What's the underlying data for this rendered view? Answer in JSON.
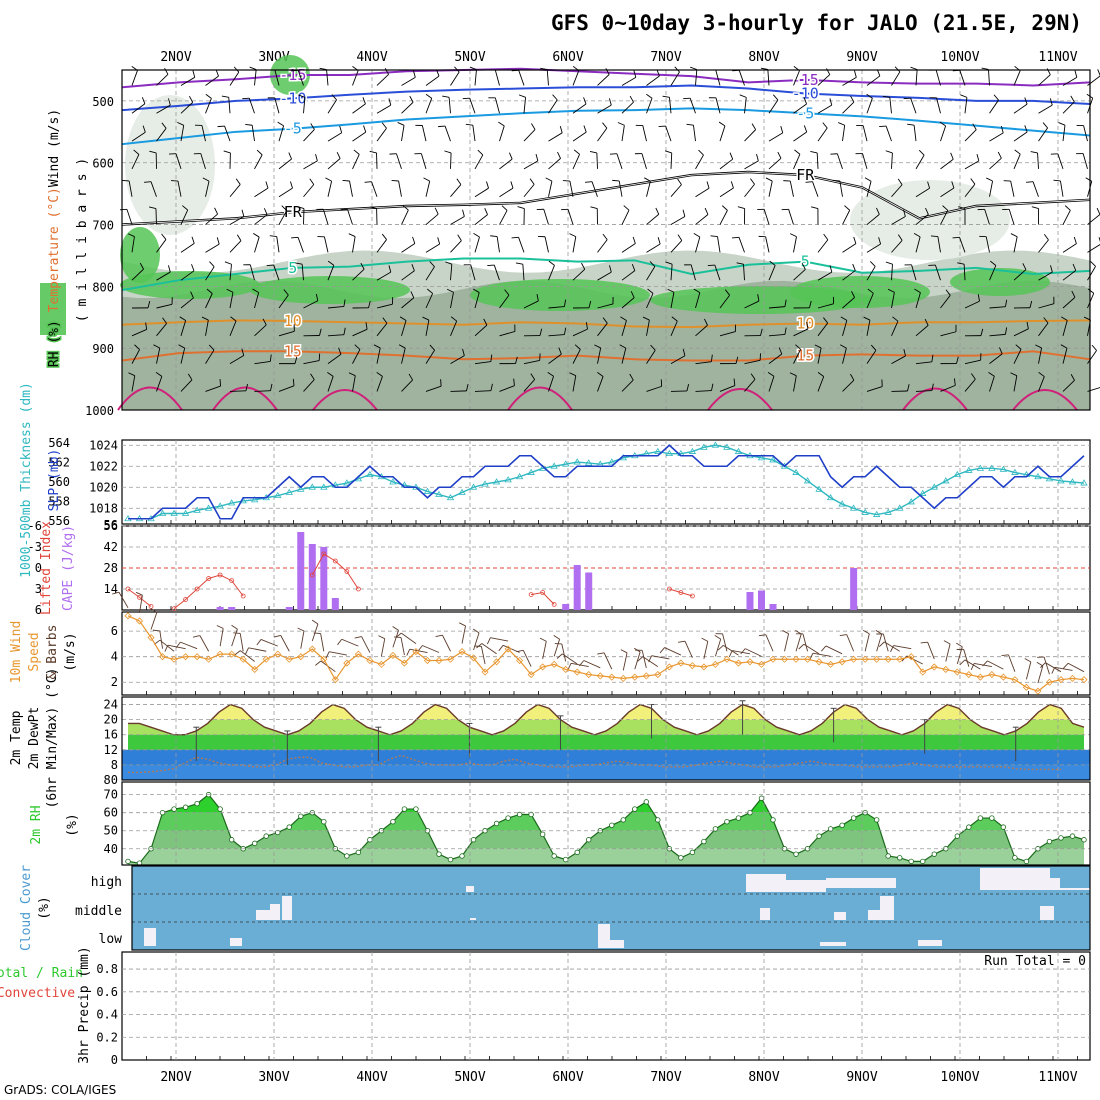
{
  "title": "GFS 0~10day 3-hourly for JALO (21.5E, 29N)",
  "footer": "GrADS: COLA/IGES",
  "dates": [
    "2NOV",
    "3NOV",
    "4NOV",
    "5NOV",
    "6NOV",
    "7NOV",
    "8NOV",
    "9NOV",
    "10NOV",
    "11NOV"
  ],
  "colors": {
    "rh_light": "#c8d4c8",
    "rh_mid": "#9fb39f",
    "rh_green": "#55c455",
    "slp": "#1f3fc8",
    "thickness": "#2fb8c0",
    "lifted": "#e0453a",
    "cape": "#b06ef0",
    "wind10": "#e8962e",
    "temp_yellow": "#f0f07a",
    "temp_green": "#3ec83e",
    "dew_blue": "#3a8ae0",
    "rh2m": "#4fce4f",
    "cloud": "#6aaed6",
    "precip_total": "#2ec82e"
  },
  "chart_data": [
    {
      "panel": "upper_air",
      "type": "heatmap",
      "ylabel_parts": [
        "RH (%)",
        "Temperature (°C)",
        "Wind (m/s)"
      ],
      "ylabel_units": "( m i l l i b a r s )",
      "yticks": [
        "500",
        "600",
        "700",
        "800",
        "900",
        "1000"
      ],
      "ylim": [
        450,
        1000
      ],
      "temp_contours": [
        {
          "label": "-15",
          "color": "#8a2cc0",
          "levels": [
            478,
            470,
            465,
            458,
            458,
            452,
            450,
            448,
            452,
            456,
            460,
            470,
            466,
            470,
            472,
            472,
            475,
            470
          ]
        },
        {
          "label": "-10",
          "color": "#2a4ed8",
          "levels": [
            515,
            508,
            500,
            496,
            490,
            485,
            482,
            480,
            478,
            478,
            475,
            480,
            488,
            492,
            495,
            500,
            500,
            505
          ]
        },
        {
          "label": "-5",
          "color": "#1a9ae0",
          "levels": [
            570,
            560,
            550,
            545,
            538,
            530,
            525,
            520,
            516,
            515,
            512,
            515,
            520,
            525,
            532,
            540,
            548,
            556
          ]
        },
        {
          "label": "FR",
          "color": "#000000",
          "levels": [
            700,
            695,
            690,
            680,
            675,
            670,
            668,
            665,
            650,
            635,
            620,
            615,
            620,
            640,
            690,
            670,
            665,
            660
          ]
        },
        {
          "label": "5",
          "color": "#1ac09a",
          "levels": [
            806,
            790,
            780,
            770,
            768,
            760,
            755,
            755,
            760,
            758,
            780,
            765,
            760,
            778,
            775,
            770,
            780,
            775
          ]
        },
        {
          "label": "10",
          "color": "#e0902a",
          "levels": [
            862,
            858,
            855,
            856,
            858,
            860,
            862,
            858,
            860,
            865,
            866,
            862,
            860,
            862,
            858,
            858,
            856,
            855
          ]
        },
        {
          "label": "15",
          "color": "#e07030",
          "levels": [
            920,
            908,
            905,
            905,
            908,
            912,
            918,
            916,
            912,
            918,
            920,
            920,
            912,
            910,
            912,
            912,
            905,
            918
          ]
        }
      ]
    },
    {
      "panel": "slp_thickness",
      "type": "line",
      "ylabel_left": "1000-500mb Thickness (dm)",
      "ylabel_right": "SLP (mb)",
      "yticks_left": [
        "556",
        "558",
        "560",
        "562",
        "564"
      ],
      "yticks_right": [
        "1018",
        "1020",
        "1022",
        "1024"
      ],
      "ylim_slp": [
        1016.5,
        1024.5
      ],
      "series": [
        {
          "name": "SLP",
          "values": [
            1017,
            1017,
            1017,
            1018,
            1018,
            1018,
            1019,
            1019,
            1017,
            1017,
            1019,
            1019,
            1019,
            1020,
            1021,
            1020,
            1021,
            1021,
            1020,
            1020,
            1021,
            1022,
            1021,
            1021,
            1020,
            1020,
            1019,
            1020,
            1020,
            1021,
            1021,
            1022,
            1022,
            1022,
            1023,
            1023,
            1022,
            1021,
            1021,
            1022,
            1022,
            1022,
            1022,
            1023,
            1023,
            1023,
            1023,
            1024,
            1023,
            1023,
            1022,
            1022,
            1022,
            1023,
            1023,
            1023,
            1023,
            1022,
            1023,
            1023,
            1023,
            1021,
            1020,
            1021,
            1021,
            1022,
            1021,
            1020,
            1020,
            1019,
            1018,
            1019,
            1019,
            1020,
            1021,
            1021,
            1020,
            1021,
            1021,
            1022,
            1021,
            1021,
            1022,
            1023
          ]
        },
        {
          "name": "Thickness",
          "values": [
            1017,
            1017,
            1017,
            1017.5,
            1017.5,
            1017.5,
            1017.8,
            1018,
            1018.2,
            1018.5,
            1018.7,
            1018.8,
            1019,
            1019.2,
            1019.5,
            1019.8,
            1020,
            1020,
            1020.2,
            1020.4,
            1020.8,
            1021.2,
            1021,
            1020.5,
            1020.2,
            1020,
            1019.6,
            1019.3,
            1019,
            1019.5,
            1020,
            1020.3,
            1020.5,
            1020.7,
            1021,
            1021.4,
            1021.8,
            1022,
            1022.2,
            1022.4,
            1022.3,
            1022.2,
            1022.4,
            1022.8,
            1023,
            1023.2,
            1023.4,
            1023.2,
            1023.2,
            1023.4,
            1023.8,
            1024,
            1023.8,
            1023.4,
            1023,
            1022.8,
            1022.6,
            1022,
            1021.4,
            1020.6,
            1019.8,
            1019,
            1018.4,
            1018,
            1017.6,
            1017.4,
            1017.6,
            1018,
            1018.6,
            1019.4,
            1020,
            1020.6,
            1021.2,
            1021.6,
            1021.8,
            1021.8,
            1021.7,
            1021.4,
            1021.2,
            1021,
            1020.8,
            1020.6,
            1020.5,
            1020.4
          ]
        }
      ]
    },
    {
      "panel": "lifted_cape",
      "type": "bar",
      "ylabel_left": "Lifted Index",
      "ylabel_right": "CAPE (J/kg)",
      "yticks_left": [
        "-6",
        "-3",
        "0",
        "3",
        "6"
      ],
      "yticks_right": [
        "14",
        "28",
        "42",
        "56"
      ],
      "lifted_index": [
        3,
        4.2,
        5.5,
        6,
        5.8,
        4.5,
        3,
        1.5,
        1,
        1.8,
        4,
        6,
        6,
        6,
        6,
        6,
        1,
        -2,
        -1,
        0.5,
        3,
        6,
        6,
        6,
        6,
        6,
        6,
        6,
        6,
        6,
        6,
        6,
        6,
        6,
        6,
        3.8,
        3.5,
        5.2,
        6,
        6,
        6,
        6,
        6,
        6,
        6,
        6,
        6,
        3,
        3.5,
        4,
        6,
        6,
        6,
        6,
        6,
        6,
        6,
        6,
        6,
        6,
        6,
        6,
        6,
        6,
        6,
        6,
        6,
        6,
        6,
        6,
        6,
        6,
        6,
        6,
        6,
        6,
        6,
        6,
        6,
        6,
        6,
        6,
        6,
        6
      ],
      "cape_bars": [
        {
          "i": 8,
          "v": 2
        },
        {
          "i": 9,
          "v": 2
        },
        {
          "i": 14,
          "v": 2
        },
        {
          "i": 15,
          "v": 52
        },
        {
          "i": 16,
          "v": 44
        },
        {
          "i": 17,
          "v": 42
        },
        {
          "i": 18,
          "v": 8
        },
        {
          "i": 38,
          "v": 4
        },
        {
          "i": 39,
          "v": 30
        },
        {
          "i": 40,
          "v": 25
        },
        {
          "i": 54,
          "v": 12
        },
        {
          "i": 55,
          "v": 13
        },
        {
          "i": 56,
          "v": 4
        },
        {
          "i": 63,
          "v": 28
        }
      ]
    },
    {
      "panel": "wind10m",
      "type": "line",
      "ylabel_parts": [
        "10m Wind",
        "Speed",
        "& Barbs",
        "(m/s)"
      ],
      "yticks": [
        "2",
        "4",
        "6"
      ],
      "ylim": [
        1,
        7.5
      ],
      "series": [
        {
          "name": "10m Wind Speed",
          "values": [
            7.2,
            6.8,
            5.5,
            4,
            3.8,
            4,
            4,
            3.8,
            4.2,
            4.2,
            3.8,
            3,
            3.8,
            4.2,
            3.8,
            4,
            4.6,
            3.8,
            2.2,
            3.5,
            4.2,
            3.7,
            3.4,
            4.1,
            3.5,
            4.4,
            3.7,
            3.7,
            3.8,
            4.4,
            3.9,
            2.8,
            3.6,
            4.6,
            3.7,
            2.6,
            3.2,
            3.4,
            3,
            2.8,
            2.6,
            2.5,
            2.4,
            2.3,
            2.4,
            2.5,
            2.6,
            3.2,
            3.5,
            3.3,
            3.2,
            3.4,
            3.8,
            3.5,
            3.6,
            3.4,
            3.8,
            3.8,
            3.8,
            3.8,
            3.6,
            3.4,
            3.6,
            3.8,
            3.8,
            3.8,
            3.8,
            3.8,
            4,
            2.8,
            3.2,
            3,
            2.8,
            2.6,
            2.4,
            2.6,
            2.4,
            2.2,
            1.6,
            1.3,
            2,
            2.2,
            2.3,
            2.2
          ]
        }
      ]
    },
    {
      "panel": "temp2m",
      "type": "area",
      "ylabel_parts": [
        "2m Temp",
        "2m DewPt",
        "(6hr Min/Max) (°C)"
      ],
      "yticks": [
        "8",
        "12",
        "16",
        "20",
        "24"
      ],
      "yticks_bottom": "80",
      "ylim": [
        4,
        26
      ],
      "series": [
        {
          "name": "2m Temp",
          "values": [
            19,
            19,
            18,
            17,
            16,
            16,
            17,
            19,
            22,
            24,
            23,
            20,
            18,
            17,
            16,
            17,
            19,
            22,
            24,
            23,
            20,
            18,
            17,
            16,
            17,
            19,
            22,
            24,
            23,
            20,
            18,
            17,
            16,
            17,
            19,
            22,
            24,
            23,
            20,
            18,
            17,
            16,
            17,
            19,
            22,
            24,
            23,
            20,
            18,
            17,
            16,
            17,
            19,
            22,
            24,
            23,
            20,
            18,
            17,
            16,
            17,
            19,
            22,
            24,
            23,
            20,
            18,
            17,
            16,
            17,
            19,
            22,
            24,
            23,
            20,
            18,
            17,
            16,
            17,
            19,
            22,
            24,
            23,
            19,
            18
          ]
        },
        {
          "name": "2m DewPt",
          "values": [
            6,
            6,
            6.2,
            6.5,
            7,
            8.5,
            10,
            9.5,
            8.5,
            8,
            8,
            7.5,
            7.5,
            8,
            9.5,
            10,
            10,
            8.5,
            8,
            7.5,
            7.5,
            8,
            8,
            9.5,
            10.5,
            9.5,
            8.5,
            8,
            8,
            8,
            8.5,
            8,
            8,
            9,
            9.5,
            8.5,
            8,
            7.5,
            7.5,
            7.5,
            8,
            8,
            8.5,
            9,
            8.5,
            8,
            8,
            7.5,
            7.5,
            7.5,
            8,
            8.5,
            9,
            8.5,
            8,
            7.5,
            7.5,
            7.5,
            8,
            8.5,
            9,
            8.5,
            8,
            8,
            7.5,
            7.5,
            7.5,
            7.5,
            8,
            8.5,
            8,
            7.5,
            7.5,
            7.5,
            7.5,
            7.5,
            7.5,
            7.5,
            7,
            6.8,
            6.8,
            6.8,
            6.8
          ]
        }
      ]
    },
    {
      "panel": "rh2m",
      "type": "area",
      "ylabel_parts": [
        "2m RH",
        "(%)"
      ],
      "yticks": [
        "40",
        "50",
        "60",
        "70"
      ],
      "ylim": [
        31,
        77
      ],
      "series": [
        {
          "name": "2m RH",
          "values": [
            33,
            32,
            40,
            60,
            62,
            63,
            65,
            70,
            62,
            45,
            40,
            43,
            47,
            49,
            52,
            58,
            60,
            55,
            40,
            36,
            38,
            45,
            50,
            55,
            62,
            62,
            50,
            37,
            34,
            36,
            45,
            50,
            54,
            57,
            59,
            59,
            48,
            36,
            34,
            38,
            45,
            50,
            53,
            56,
            62,
            66,
            56,
            40,
            35,
            38,
            44,
            51,
            55,
            57,
            60,
            68,
            56,
            40,
            37,
            40,
            47,
            51,
            53,
            57,
            60,
            56,
            36,
            35,
            33,
            33,
            37,
            40,
            47,
            52,
            57,
            57,
            52,
            35,
            33,
            40,
            44,
            46,
            47,
            45
          ]
        }
      ]
    },
    {
      "panel": "cloud_cover",
      "type": "heatmap",
      "ylabel_parts": [
        "Cloud Cover",
        "(%)"
      ],
      "levels": [
        "high",
        "middle",
        "low"
      ]
    },
    {
      "panel": "precip",
      "type": "bar",
      "ylabel_parts": [
        "Total / Rain",
        "Convective",
        "3hr Precip (mm)"
      ],
      "yticks": [
        "0",
        "0.2",
        "0.4",
        "0.6",
        "0.8"
      ],
      "ylim": [
        0,
        0.95
      ],
      "run_total": "Run Total = 0",
      "values": []
    }
  ]
}
